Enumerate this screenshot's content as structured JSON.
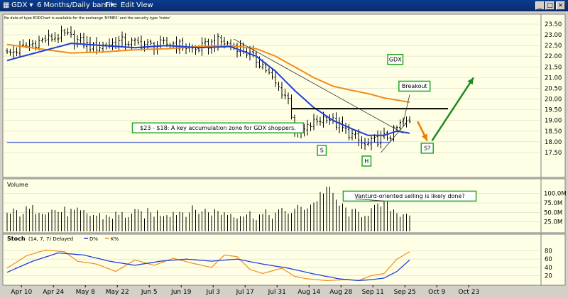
{
  "window": {
    "symbol": "GDX",
    "period": "6 Months/Daily bars",
    "menus": [
      "File",
      "Edit",
      "View"
    ]
  },
  "notice": "No data of type EODChart is available for the exchange 'NYMEX' and the security type 'Index'",
  "colors": {
    "background": "#ffffe6",
    "price_bars": "#000000",
    "ma_fast": "#1f3fd8",
    "ma_slow": "#f08c1e",
    "annotation_border": "#1fa81f",
    "breakout_line": "#000000",
    "neck_line": "#1f3fd8",
    "up_arrow": "#1f8a1f",
    "down_arrow": "#f07a00",
    "stoch_d": "#1f3fd8",
    "stoch_k": "#f08c1e"
  },
  "icons": [
    "chart-icon",
    "dropdown-arrow-icon",
    "minimize-icon",
    "maximize-icon",
    "close-icon"
  ],
  "chart_data": [
    {
      "type": "candlestick",
      "title": "GDX",
      "ylim": [
        17.0,
        23.5
      ],
      "y_ticks": [
        "23.50",
        "23.00",
        "22.50",
        "22.00",
        "21.50",
        "21.00",
        "20.50",
        "20.00",
        "19.50",
        "19.00",
        "18.50",
        "18.00",
        "17.50"
      ],
      "x_ticks": [
        "Apr 10",
        "Apr 24",
        "May 8",
        "May 22",
        "Jun 5",
        "Jun 19",
        "Jul 3",
        "Jul 17",
        "Jul 31",
        "Aug 14",
        "Aug 28",
        "Sep 11",
        "Sep 25",
        "Oct 9",
        "Oct 23"
      ],
      "grid": true,
      "price_anchors": [
        [
          0,
          22.1
        ],
        [
          10,
          22.7
        ],
        [
          18,
          23.0
        ],
        [
          27,
          22.4
        ],
        [
          36,
          22.7
        ],
        [
          45,
          22.5
        ],
        [
          52,
          22.6
        ],
        [
          59,
          22.3
        ],
        [
          66,
          22.7
        ],
        [
          73,
          22.4
        ],
        [
          80,
          21.6
        ],
        [
          84,
          20.7
        ],
        [
          88,
          20.0
        ],
        [
          90,
          18.6
        ],
        [
          92,
          18.4
        ],
        [
          96,
          18.9
        ],
        [
          100,
          19.2
        ],
        [
          104,
          18.7
        ],
        [
          108,
          18.3
        ],
        [
          112,
          17.8
        ],
        [
          116,
          18.1
        ],
        [
          120,
          18.3
        ],
        [
          123,
          18.8
        ],
        [
          126,
          18.9
        ]
      ],
      "ma_fast_anchors": [
        [
          0,
          21.8
        ],
        [
          10,
          22.2
        ],
        [
          20,
          22.6
        ],
        [
          30,
          22.5
        ],
        [
          40,
          22.4
        ],
        [
          50,
          22.5
        ],
        [
          60,
          22.4
        ],
        [
          70,
          22.45
        ],
        [
          78,
          22.0
        ],
        [
          84,
          21.3
        ],
        [
          90,
          20.4
        ],
        [
          96,
          19.6
        ],
        [
          102,
          19.0
        ],
        [
          108,
          18.6
        ],
        [
          113,
          18.3
        ],
        [
          118,
          18.3
        ],
        [
          122,
          18.5
        ],
        [
          126,
          18.4
        ]
      ],
      "ma_slow_anchors": [
        [
          0,
          22.55
        ],
        [
          10,
          22.35
        ],
        [
          20,
          22.15
        ],
        [
          30,
          22.2
        ],
        [
          40,
          22.3
        ],
        [
          50,
          22.35
        ],
        [
          60,
          22.45
        ],
        [
          70,
          22.5
        ],
        [
          78,
          22.35
        ],
        [
          84,
          22.0
        ],
        [
          90,
          21.5
        ],
        [
          96,
          21.0
        ],
        [
          102,
          20.6
        ],
        [
          108,
          20.4
        ],
        [
          113,
          20.25
        ],
        [
          118,
          20.05
        ],
        [
          122,
          19.95
        ],
        [
          126,
          19.85
        ]
      ],
      "annotations": [
        {
          "label": "GDX",
          "x": 121.5,
          "y": 21.85
        },
        {
          "label": "Breakout",
          "x": 127.5,
          "y": 20.6
        },
        {
          "label": "$23 - $18: A key accumulation zone for GDX shoppers.",
          "x": 66,
          "y": 18.65
        },
        {
          "label": "S",
          "x": 98.5,
          "y": 17.6
        },
        {
          "label": "H",
          "x": 112.5,
          "y": 17.1
        },
        {
          "label": "S?",
          "x": 131.5,
          "y": 17.7
        }
      ],
      "lines": [
        {
          "name": "breakout-line",
          "x1": 89,
          "y1": 19.55,
          "x2": 138,
          "y2": 19.55
        },
        {
          "name": "neck-line",
          "x1": 0,
          "y1": 17.97,
          "x2": 120,
          "y2": 17.97
        },
        {
          "name": "downtrend-line",
          "x1": 71,
          "y1": 22.8,
          "x2": 124,
          "y2": 18.4
        },
        {
          "name": "uptrend-line",
          "x1": 117,
          "y1": 17.5,
          "x2": 125,
          "y2": 18.9
        },
        {
          "name": "breakout-pointer",
          "x1": 126,
          "y1": 20.2,
          "x2": 124,
          "y2": 18.9
        }
      ],
      "arrows": [
        {
          "name": "down-arrow",
          "x1": 128.5,
          "y1": 18.95,
          "x2": 131.5,
          "y2": 18.05
        },
        {
          "name": "up-arrow",
          "x1": 133,
          "y1": 18.05,
          "x2": 146,
          "y2": 21.0
        }
      ]
    },
    {
      "type": "bar",
      "title": "Volume",
      "ylim": [
        0,
        120
      ],
      "y_ticks": [
        "100.0M",
        "75.0M",
        "50.0M",
        "25.0M"
      ],
      "unit": "M",
      "volume_anchors": [
        [
          0,
          45
        ],
        [
          10,
          60
        ],
        [
          20,
          50
        ],
        [
          30,
          40
        ],
        [
          40,
          45
        ],
        [
          50,
          50
        ],
        [
          60,
          55
        ],
        [
          70,
          48
        ],
        [
          80,
          42
        ],
        [
          90,
          55
        ],
        [
          96,
          75
        ],
        [
          100,
          120
        ],
        [
          104,
          70
        ],
        [
          108,
          45
        ],
        [
          112,
          50
        ],
        [
          116,
          60
        ],
        [
          118,
          80
        ],
        [
          122,
          50
        ],
        [
          126,
          50
        ]
      ],
      "annotations": [
        {
          "label": "Vanturd-oriented selling is likely done?",
          "x": 126,
          "y": 93
        }
      ]
    },
    {
      "type": "line",
      "title": "Stoch",
      "params": "(14, 7, 7) Delayed",
      "legend": [
        "D%",
        "K%"
      ],
      "ylim": [
        0,
        100
      ],
      "y_ticks": [
        "80",
        "60",
        "40",
        "20"
      ],
      "series": [
        {
          "name": "D%",
          "anchors": [
            [
              0,
              28
            ],
            [
              8,
              55
            ],
            [
              16,
              75
            ],
            [
              24,
              70
            ],
            [
              32,
              55
            ],
            [
              40,
              45
            ],
            [
              48,
              55
            ],
            [
              56,
              60
            ],
            [
              64,
              55
            ],
            [
              72,
              60
            ],
            [
              80,
              48
            ],
            [
              88,
              38
            ],
            [
              96,
              24
            ],
            [
              104,
              12
            ],
            [
              110,
              8
            ],
            [
              114,
              10
            ],
            [
              118,
              14
            ],
            [
              122,
              30
            ],
            [
              126,
              58
            ]
          ]
        },
        {
          "name": "K%",
          "anchors": [
            [
              0,
              38
            ],
            [
              6,
              68
            ],
            [
              12,
              82
            ],
            [
              18,
              78
            ],
            [
              22,
              55
            ],
            [
              28,
              48
            ],
            [
              34,
              30
            ],
            [
              40,
              58
            ],
            [
              46,
              45
            ],
            [
              52,
              62
            ],
            [
              58,
              50
            ],
            [
              64,
              40
            ],
            [
              68,
              70
            ],
            [
              72,
              66
            ],
            [
              76,
              35
            ],
            [
              80,
              25
            ],
            [
              86,
              38
            ],
            [
              90,
              18
            ],
            [
              94,
              12
            ],
            [
              100,
              8
            ],
            [
              106,
              10
            ],
            [
              110,
              8
            ],
            [
              114,
              20
            ],
            [
              118,
              25
            ],
            [
              122,
              60
            ],
            [
              126,
              78
            ]
          ]
        }
      ]
    }
  ]
}
